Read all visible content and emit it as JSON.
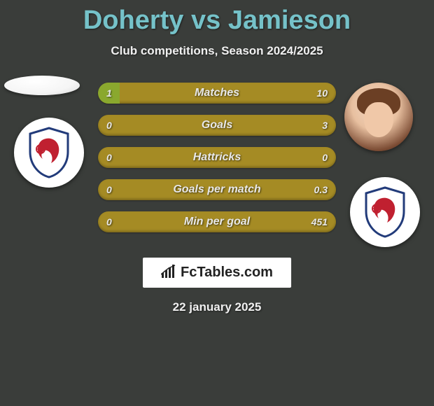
{
  "title": "Doherty vs Jamieson",
  "subtitle": "Club competitions, Season 2024/2025",
  "colors": {
    "background": "#3a3d3a",
    "title": "#75c2c9",
    "text": "#f0f0f0",
    "bar_track": "#a58b24",
    "bar_fill": "#8aa82e",
    "brand_bg": "#ffffff",
    "brand_text": "#222222",
    "shield_outline": "#223b7a",
    "shield_fill": "#ffffff",
    "shield_lion": "#c02030"
  },
  "bars": [
    {
      "label": "Matches",
      "left_val": "1",
      "right_val": "10",
      "left_pct": 9,
      "right_pct": 0
    },
    {
      "label": "Goals",
      "left_val": "0",
      "right_val": "3",
      "left_pct": 0,
      "right_pct": 0
    },
    {
      "label": "Hattricks",
      "left_val": "0",
      "right_val": "0",
      "left_pct": 0,
      "right_pct": 0
    },
    {
      "label": "Goals per match",
      "left_val": "0",
      "right_val": "0.3",
      "left_pct": 0,
      "right_pct": 0
    },
    {
      "label": "Min per goal",
      "left_val": "0",
      "right_val": "451",
      "left_pct": 0,
      "right_pct": 0
    }
  ],
  "brand": "FcTables.com",
  "date": "22 january 2025"
}
